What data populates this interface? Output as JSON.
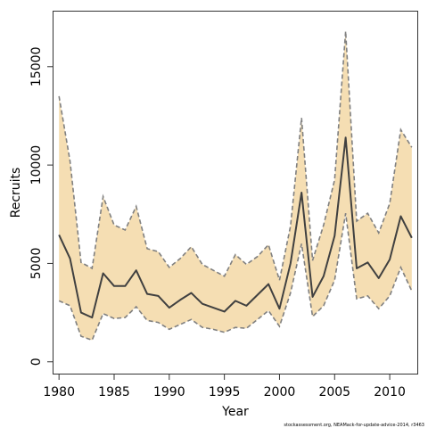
{
  "chart_data": {
    "type": "line",
    "xlabel": "Year",
    "ylabel": "Recruits",
    "xlim": [
      1979.5,
      2012.5
    ],
    "ylim": [
      -600,
      17800
    ],
    "x_ticks": [
      1980,
      1985,
      1990,
      1995,
      2000,
      2005,
      2010
    ],
    "y_ticks": [
      0,
      5000,
      10000,
      15000
    ],
    "grid": false,
    "x": [
      1980,
      1981,
      1982,
      1983,
      1984,
      1985,
      1986,
      1987,
      1988,
      1989,
      1990,
      1991,
      1992,
      1993,
      1994,
      1995,
      1996,
      1997,
      1998,
      1999,
      2000,
      2001,
      2002,
      2003,
      2004,
      2005,
      2006,
      2007,
      2008,
      2009,
      2010,
      2011,
      2012
    ],
    "series": [
      {
        "role": "estimate",
        "style": "solid",
        "color": "#404040",
        "values": [
          6450,
          5250,
          2500,
          2250,
          4500,
          3850,
          3850,
          4650,
          3450,
          3350,
          2750,
          3150,
          3500,
          2950,
          2750,
          2550,
          3100,
          2850,
          3400,
          3950,
          2700,
          5000,
          8600,
          3300,
          4350,
          6400,
          11400,
          4750,
          5050,
          4250,
          5200,
          7400,
          6300
        ]
      },
      {
        "role": "upper",
        "style": "dashed",
        "color": "#808080",
        "values": [
          13500,
          10200,
          5050,
          4750,
          8400,
          6950,
          6700,
          7900,
          5750,
          5600,
          4800,
          5250,
          5850,
          4950,
          4650,
          4350,
          5450,
          4950,
          5350,
          5950,
          4150,
          6900,
          12400,
          5150,
          6950,
          9250,
          16800,
          7150,
          7550,
          6550,
          8050,
          11800,
          10900
        ]
      },
      {
        "role": "lower",
        "style": "dashed",
        "color": "#808080",
        "values": [
          3100,
          2850,
          1300,
          1100,
          2450,
          2200,
          2250,
          2800,
          2100,
          2000,
          1650,
          1900,
          2150,
          1750,
          1650,
          1500,
          1750,
          1700,
          2150,
          2600,
          1800,
          3500,
          6000,
          2300,
          2850,
          4150,
          7550,
          3200,
          3350,
          2700,
          3350,
          4800,
          3600
        ]
      }
    ],
    "band_color": "#f5deb3"
  },
  "credit": "stockassessment.org, NEAMack-for-update-advice-2014, r3463"
}
